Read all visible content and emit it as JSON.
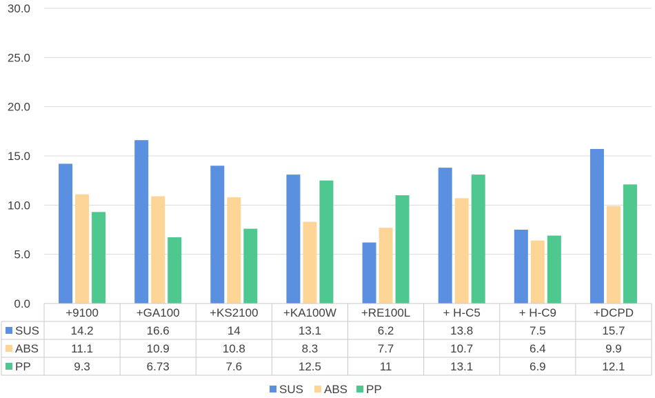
{
  "chart_data": {
    "type": "bar",
    "title": "",
    "xlabel": "",
    "ylabel": "",
    "ylim": [
      0,
      30
    ],
    "yticks": [
      "0.0",
      "5.0",
      "10.0",
      "15.0",
      "20.0",
      "25.0",
      "30.0"
    ],
    "ytick_values": [
      0,
      5,
      10,
      15,
      20,
      25,
      30
    ],
    "categories": [
      "+9100",
      "+GA100",
      "+KS2100",
      "+KA100W",
      "+RE100L",
      "+ H-C5",
      "+ H-C9",
      "+DCPD"
    ],
    "series": [
      {
        "name": "SUS",
        "color": "#5b8fe0",
        "values": [
          14.2,
          16.6,
          14,
          13.1,
          6.2,
          13.8,
          7.5,
          15.7
        ],
        "labels": [
          "14.2",
          "16.6",
          "14",
          "13.1",
          "6.2",
          "13.8",
          "7.5",
          "15.7"
        ]
      },
      {
        "name": "ABS",
        "color": "#fdd697",
        "values": [
          11.1,
          10.9,
          10.8,
          8.3,
          7.7,
          10.7,
          6.4,
          9.9
        ],
        "labels": [
          "11.1",
          "10.9",
          "10.8",
          "8.3",
          "7.7",
          "10.7",
          "6.4",
          "9.9"
        ]
      },
      {
        "name": "PP",
        "color": "#4fc88f",
        "values": [
          9.3,
          6.73,
          7.6,
          12.5,
          11,
          13.1,
          6.9,
          12.1
        ],
        "labels": [
          "9.3",
          "6.73",
          "7.6",
          "12.5",
          "11",
          "13.1",
          "6.9",
          "12.1"
        ]
      }
    ],
    "grid": true,
    "legend": "bottom-center",
    "data_table": true
  }
}
